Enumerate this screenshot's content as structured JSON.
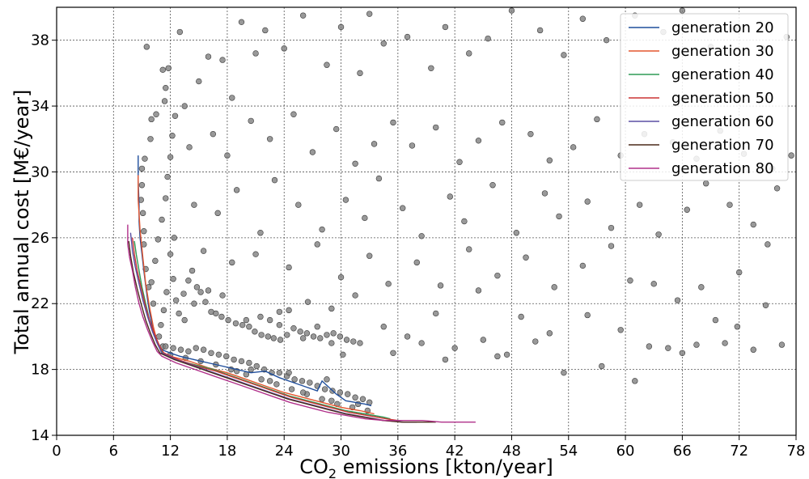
{
  "chart_data": {
    "type": "scatter",
    "title": "",
    "xlabel": {
      "prefix": "CO",
      "sub": "2",
      "suffix": " emissions [kton/year]"
    },
    "ylabel": "Total annual cost [M€/year]",
    "xlim": [
      0,
      78
    ],
    "ylim": [
      14,
      40
    ],
    "xticks": [
      0,
      6,
      12,
      18,
      24,
      30,
      36,
      42,
      48,
      54,
      60,
      66,
      72,
      78
    ],
    "yticks": [
      14,
      18,
      22,
      26,
      30,
      34,
      38
    ],
    "grid": true,
    "legend_position": "top-right",
    "scatter_color": "#808080",
    "scatter_samples": [
      [
        9.5,
        37.6
      ],
      [
        10.5,
        33.5
      ],
      [
        9.9,
        32.0
      ],
      [
        9.3,
        30.8
      ],
      [
        9.0,
        30.2
      ],
      [
        11.2,
        36.2
      ],
      [
        11.5,
        35.1
      ],
      [
        11.4,
        34.3
      ],
      [
        11.8,
        36.3
      ],
      [
        10.0,
        33.2
      ],
      [
        13.0,
        38.5
      ],
      [
        13.5,
        34.0
      ],
      [
        12.5,
        33.4
      ],
      [
        15.0,
        35.5
      ],
      [
        16.0,
        37.0
      ],
      [
        17.5,
        36.8
      ],
      [
        19.5,
        39.1
      ],
      [
        21.0,
        37.2
      ],
      [
        22.0,
        38.6
      ],
      [
        18.5,
        34.5
      ],
      [
        24.0,
        37.5
      ],
      [
        26.0,
        39.5
      ],
      [
        28.5,
        36.5
      ],
      [
        30.0,
        38.8
      ],
      [
        33.0,
        39.6
      ],
      [
        32.0,
        36.0
      ],
      [
        34.5,
        37.8
      ],
      [
        37.0,
        38.2
      ],
      [
        39.5,
        36.3
      ],
      [
        41.0,
        38.8
      ],
      [
        43.5,
        37.2
      ],
      [
        45.5,
        38.1
      ],
      [
        48.0,
        39.8
      ],
      [
        51.0,
        38.6
      ],
      [
        53.5,
        37.1
      ],
      [
        55.5,
        39.3
      ],
      [
        58.0,
        38.0
      ],
      [
        61.0,
        39.5
      ],
      [
        64.0,
        38.5
      ],
      [
        66.0,
        39.8
      ],
      [
        69.0,
        37.6
      ],
      [
        71.5,
        38.7
      ],
      [
        74.5,
        37.5
      ],
      [
        77.0,
        38.2
      ],
      [
        14.0,
        31.5
      ],
      [
        16.5,
        32.3
      ],
      [
        18.0,
        31.0
      ],
      [
        20.5,
        33.1
      ],
      [
        22.5,
        32.0
      ],
      [
        25.0,
        33.5
      ],
      [
        27.0,
        31.2
      ],
      [
        29.5,
        32.6
      ],
      [
        31.5,
        30.5
      ],
      [
        33.5,
        31.7
      ],
      [
        35.5,
        33.0
      ],
      [
        37.5,
        31.6
      ],
      [
        40.0,
        32.7
      ],
      [
        42.5,
        30.6
      ],
      [
        44.5,
        31.9
      ],
      [
        47.0,
        33.0
      ],
      [
        50.0,
        32.3
      ],
      [
        52.0,
        30.7
      ],
      [
        54.5,
        31.5
      ],
      [
        57.0,
        33.2
      ],
      [
        59.5,
        31.0
      ],
      [
        62.0,
        32.3
      ],
      [
        65.0,
        31.8
      ],
      [
        67.5,
        30.8
      ],
      [
        70.0,
        32.5
      ],
      [
        72.5,
        31.1
      ],
      [
        75.5,
        30.2
      ],
      [
        77.5,
        31.0
      ],
      [
        14.5,
        28.0
      ],
      [
        17.0,
        27.5
      ],
      [
        19.0,
        28.9
      ],
      [
        21.5,
        26.3
      ],
      [
        23.0,
        29.5
      ],
      [
        25.5,
        28.0
      ],
      [
        28.0,
        26.5
      ],
      [
        30.5,
        28.3
      ],
      [
        32.5,
        27.2
      ],
      [
        34.0,
        29.6
      ],
      [
        36.5,
        27.8
      ],
      [
        38.5,
        26.1
      ],
      [
        41.5,
        28.5
      ],
      [
        43.0,
        27.0
      ],
      [
        46.0,
        29.2
      ],
      [
        48.5,
        26.3
      ],
      [
        51.5,
        28.7
      ],
      [
        53.0,
        27.3
      ],
      [
        56.0,
        28.2
      ],
      [
        58.5,
        26.6
      ],
      [
        61.5,
        28.0
      ],
      [
        63.5,
        26.2
      ],
      [
        66.5,
        27.7
      ],
      [
        68.5,
        29.3
      ],
      [
        71.0,
        28.0
      ],
      [
        73.5,
        26.8
      ],
      [
        76.0,
        29.0
      ],
      [
        15.5,
        25.2
      ],
      [
        18.5,
        24.5
      ],
      [
        21.0,
        25.0
      ],
      [
        24.5,
        24.2
      ],
      [
        27.5,
        25.6
      ],
      [
        30.0,
        23.6
      ],
      [
        33.0,
        24.9
      ],
      [
        35.0,
        23.2
      ],
      [
        38.0,
        24.5
      ],
      [
        40.5,
        23.1
      ],
      [
        43.5,
        25.3
      ],
      [
        46.5,
        23.7
      ],
      [
        49.5,
        24.8
      ],
      [
        52.5,
        23.0
      ],
      [
        55.5,
        24.3
      ],
      [
        58.5,
        25.5
      ],
      [
        60.5,
        23.4
      ],
      [
        63.0,
        23.2
      ],
      [
        65.5,
        22.2
      ],
      [
        68.0,
        23.0
      ],
      [
        72.0,
        23.9
      ],
      [
        75.0,
        25.6
      ],
      [
        20.0,
        21.0
      ],
      [
        23.5,
        21.5
      ],
      [
        26.5,
        22.1
      ],
      [
        29.0,
        21.7
      ],
      [
        31.5,
        22.5
      ],
      [
        34.5,
        20.6
      ],
      [
        37.0,
        20.0
      ],
      [
        40.0,
        21.4
      ],
      [
        42.0,
        19.3
      ],
      [
        45.0,
        19.8
      ],
      [
        47.5,
        18.9
      ],
      [
        50.5,
        19.7
      ],
      [
        53.5,
        17.8
      ],
      [
        57.5,
        18.2
      ],
      [
        61.0,
        17.3
      ],
      [
        64.5,
        19.3
      ],
      [
        67.5,
        19.5
      ],
      [
        70.5,
        19.6
      ],
      [
        73.5,
        19.2
      ],
      [
        76.5,
        19.5
      ],
      [
        35.5,
        19.0
      ],
      [
        38.5,
        19.6
      ],
      [
        41.0,
        18.6
      ],
      [
        44.5,
        22.8
      ],
      [
        49.0,
        21.2
      ],
      [
        52.0,
        20.2
      ],
      [
        56.0,
        21.3
      ],
      [
        59.5,
        20.4
      ],
      [
        62.5,
        19.4
      ],
      [
        66.0,
        19.0
      ],
      [
        69.5,
        21.0
      ],
      [
        71.8,
        20.6
      ],
      [
        74.8,
        21.9
      ],
      [
        46.5,
        18.8
      ],
      [
        10.2,
        22.0
      ],
      [
        10.0,
        23.3
      ],
      [
        10.4,
        24.6
      ],
      [
        10.7,
        25.9
      ],
      [
        11.1,
        27.1
      ],
      [
        11.5,
        28.4
      ],
      [
        11.7,
        29.7
      ],
      [
        12.0,
        30.9
      ],
      [
        12.2,
        32.2
      ],
      [
        11.3,
        21.6
      ],
      [
        11.0,
        20.7
      ],
      [
        10.8,
        20.0
      ],
      [
        11.2,
        19.4
      ],
      [
        9.0,
        29.2
      ],
      [
        9.1,
        27.5
      ],
      [
        9.2,
        25.6
      ],
      [
        9.4,
        24.1
      ],
      [
        9.7,
        23.0
      ],
      [
        8.9,
        28.3
      ],
      [
        9.2,
        26.4
      ],
      [
        12.4,
        26.0
      ],
      [
        12.0,
        25.0
      ],
      [
        12.3,
        23.5
      ],
      [
        11.6,
        22.7
      ],
      [
        12.6,
        22.2
      ],
      [
        12.9,
        21.4
      ],
      [
        13.4,
        22.6
      ],
      [
        13.9,
        23.4
      ],
      [
        14.3,
        24.0
      ],
      [
        14.8,
        23.0
      ],
      [
        15.2,
        22.7
      ],
      [
        15.7,
        22.1
      ],
      [
        16.3,
        21.5
      ],
      [
        16.8,
        21.4
      ],
      [
        17.4,
        21.2
      ],
      [
        18.1,
        21.0
      ],
      [
        18.9,
        20.8
      ],
      [
        19.6,
        20.7
      ],
      [
        20.3,
        20.6
      ],
      [
        20.9,
        20.3
      ],
      [
        21.6,
        20.1
      ],
      [
        22.3,
        20.0
      ],
      [
        22.9,
        19.9
      ],
      [
        23.6,
        19.8
      ],
      [
        24.3,
        20.1
      ],
      [
        25.0,
        20.5
      ],
      [
        25.7,
        20.3
      ],
      [
        26.4,
        20.2
      ],
      [
        27.1,
        20.0
      ],
      [
        27.8,
        19.9
      ],
      [
        28.5,
        20.1
      ],
      [
        29.2,
        20.2
      ],
      [
        29.9,
        20.0
      ],
      [
        30.6,
        19.8
      ],
      [
        31.3,
        19.7
      ],
      [
        32.0,
        19.6
      ],
      [
        26.0,
        19.9
      ],
      [
        27.5,
        20.6
      ],
      [
        29.0,
        19.6
      ],
      [
        30.2,
        18.9
      ],
      [
        21.5,
        21.2
      ],
      [
        22.5,
        21.0
      ],
      [
        17.5,
        22.5
      ],
      [
        16.0,
        22.8
      ],
      [
        14.5,
        22.0
      ],
      [
        13.5,
        21.0
      ],
      [
        24.5,
        21.6
      ],
      [
        23.5,
        20.7
      ],
      [
        11.5,
        19.4
      ],
      [
        12.3,
        19.3
      ],
      [
        13.1,
        19.2
      ],
      [
        13.9,
        19.1
      ],
      [
        14.7,
        19.3
      ],
      [
        15.5,
        19.2
      ],
      [
        16.3,
        19.0
      ],
      [
        17.1,
        18.9
      ],
      [
        17.9,
        18.8
      ],
      [
        18.7,
        18.6
      ],
      [
        19.5,
        18.5
      ],
      [
        20.3,
        18.4
      ],
      [
        21.1,
        18.2
      ],
      [
        21.9,
        18.0
      ],
      [
        22.7,
        17.8
      ],
      [
        23.5,
        17.8
      ],
      [
        24.3,
        17.6
      ],
      [
        25.1,
        17.4
      ],
      [
        25.9,
        17.3
      ],
      [
        26.7,
        17.2
      ],
      [
        27.5,
        17.0
      ],
      [
        28.3,
        16.8
      ],
      [
        29.1,
        16.7
      ],
      [
        29.9,
        16.6
      ],
      [
        30.7,
        16.5
      ],
      [
        31.5,
        16.3
      ],
      [
        32.3,
        16.2
      ],
      [
        33.0,
        16.0
      ],
      [
        20.5,
        18.0
      ],
      [
        24.5,
        17.8
      ],
      [
        28.5,
        17.4
      ],
      [
        31.8,
        15.9
      ],
      [
        12.0,
        18.9
      ],
      [
        13.6,
        18.7
      ],
      [
        15.2,
        18.5
      ],
      [
        16.8,
        18.3
      ],
      [
        18.4,
        18.0
      ],
      [
        20.0,
        17.7
      ],
      [
        21.6,
        17.4
      ],
      [
        23.2,
        17.1
      ],
      [
        24.8,
        16.8
      ],
      [
        26.4,
        16.5
      ],
      [
        28.0,
        16.2
      ],
      [
        29.6,
        15.9
      ],
      [
        31.2,
        15.7
      ],
      [
        32.8,
        15.5
      ],
      [
        19.0,
        17.9
      ],
      [
        22.5,
        17.3
      ],
      [
        26.0,
        16.6
      ],
      [
        29.0,
        16.1
      ]
    ],
    "series": [
      {
        "name": "generation 20",
        "color": "#1f4e9c",
        "x": [
          8.6,
          8.6,
          8.7,
          8.7,
          8.8,
          9.0,
          9.2,
          9.4,
          9.6,
          9.8,
          10.0,
          10.3,
          10.7,
          11.1,
          12.0,
          13.0,
          14.5,
          16.0,
          17.5,
          19.0,
          20.5,
          22.0,
          23.5,
          25.0,
          26.5,
          27.5,
          28.0,
          29.5,
          30.5,
          31.5,
          32.5,
          33.2
        ],
        "y": [
          31.0,
          29.5,
          28.0,
          27.0,
          26.0,
          25.0,
          24.0,
          23.1,
          22.2,
          21.5,
          20.9,
          20.2,
          19.6,
          19.2,
          19.0,
          18.8,
          18.6,
          18.4,
          18.2,
          18.0,
          17.8,
          17.9,
          17.5,
          17.2,
          16.9,
          16.7,
          17.3,
          16.5,
          16.1,
          16.0,
          15.9,
          15.8
        ]
      },
      {
        "name": "generation 30",
        "color": "#e4562e",
        "x": [
          8.6,
          8.6,
          8.8,
          9.1,
          9.4,
          9.8,
          10.2,
          10.6,
          11.0,
          12.0,
          14.0,
          16.0,
          18.0,
          20.0,
          22.0,
          24.0,
          26.0,
          28.0,
          30.0,
          32.0,
          33.5
        ],
        "y": [
          29.8,
          28.3,
          26.5,
          24.8,
          23.2,
          21.8,
          20.6,
          19.7,
          19.1,
          18.8,
          18.5,
          18.1,
          17.8,
          17.4,
          17.0,
          16.6,
          16.3,
          16.0,
          15.7,
          15.5,
          15.3
        ]
      },
      {
        "name": "generation 40",
        "color": "#2e9b55",
        "x": [
          8.2,
          8.4,
          8.7,
          9.0,
          9.4,
          9.8,
          10.2,
          10.7,
          11.2,
          12.5,
          14.5,
          16.5,
          18.5,
          20.5,
          22.5,
          24.5,
          26.5,
          28.5,
          30.5,
          32.5,
          34.5,
          35.2
        ],
        "y": [
          25.8,
          25.0,
          24.0,
          23.0,
          22.0,
          21.0,
          20.3,
          19.6,
          19.0,
          18.6,
          18.3,
          18.0,
          17.6,
          17.2,
          16.8,
          16.4,
          16.1,
          15.8,
          15.5,
          15.3,
          15.1,
          15.0
        ]
      },
      {
        "name": "generation 50",
        "color": "#cc3333",
        "x": [
          8.0,
          8.2,
          8.5,
          8.9,
          9.3,
          9.8,
          10.3,
          10.8,
          11.3,
          12.8,
          14.8,
          16.8,
          18.8,
          20.8,
          22.8,
          24.8,
          26.8,
          28.8,
          30.8,
          32.8,
          34.8,
          36.0
        ],
        "y": [
          26.0,
          25.0,
          24.0,
          23.0,
          22.0,
          21.0,
          20.2,
          19.5,
          19.0,
          18.6,
          18.2,
          17.9,
          17.5,
          17.1,
          16.7,
          16.3,
          16.0,
          15.7,
          15.4,
          15.2,
          15.0,
          14.9
        ]
      },
      {
        "name": "generation 60",
        "color": "#5a4fa3",
        "x": [
          7.8,
          8.0,
          8.3,
          8.7,
          9.1,
          9.6,
          10.1,
          10.6,
          11.1,
          12.6,
          14.6,
          16.6,
          18.6,
          20.6,
          22.6,
          24.6,
          26.6,
          28.6,
          30.6,
          32.6,
          34.6,
          36.6,
          38.0
        ],
        "y": [
          26.3,
          25.2,
          24.2,
          23.2,
          22.2,
          21.2,
          20.3,
          19.6,
          19.0,
          18.6,
          18.2,
          17.8,
          17.4,
          17.0,
          16.6,
          16.2,
          15.9,
          15.6,
          15.3,
          15.1,
          14.9,
          14.8,
          14.8
        ]
      },
      {
        "name": "generation 70",
        "color": "#4a2a1a",
        "x": [
          7.6,
          7.8,
          8.1,
          8.5,
          8.9,
          9.4,
          9.9,
          10.4,
          10.9,
          12.4,
          14.4,
          16.4,
          18.4,
          20.4,
          22.4,
          24.4,
          26.4,
          28.4,
          30.4,
          32.4,
          34.4,
          36.4,
          38.4,
          40.0
        ],
        "y": [
          25.8,
          24.9,
          23.9,
          22.9,
          22.0,
          21.0,
          20.2,
          19.5,
          19.0,
          18.6,
          18.2,
          17.8,
          17.4,
          17.0,
          16.6,
          16.2,
          15.9,
          15.6,
          15.3,
          15.1,
          14.9,
          14.8,
          14.8,
          14.8
        ]
      },
      {
        "name": "generation 80",
        "color": "#b0308a",
        "x": [
          7.5,
          7.5,
          7.7,
          8.0,
          8.3,
          8.7,
          9.1,
          9.6,
          10.1,
          10.6,
          11.1,
          12.6,
          14.6,
          16.6,
          18.6,
          20.6,
          22.6,
          24.6,
          26.6,
          28.6,
          30.6,
          32.6,
          34.6,
          36.6,
          38.6,
          40.6,
          42.6,
          44.2
        ],
        "y": [
          26.8,
          25.6,
          24.8,
          24.0,
          23.0,
          22.0,
          21.2,
          20.4,
          19.7,
          19.1,
          18.8,
          18.4,
          18.0,
          17.6,
          17.2,
          16.8,
          16.4,
          16.0,
          15.7,
          15.4,
          15.2,
          15.0,
          14.9,
          14.9,
          14.9,
          14.8,
          14.8,
          14.8
        ]
      }
    ]
  }
}
